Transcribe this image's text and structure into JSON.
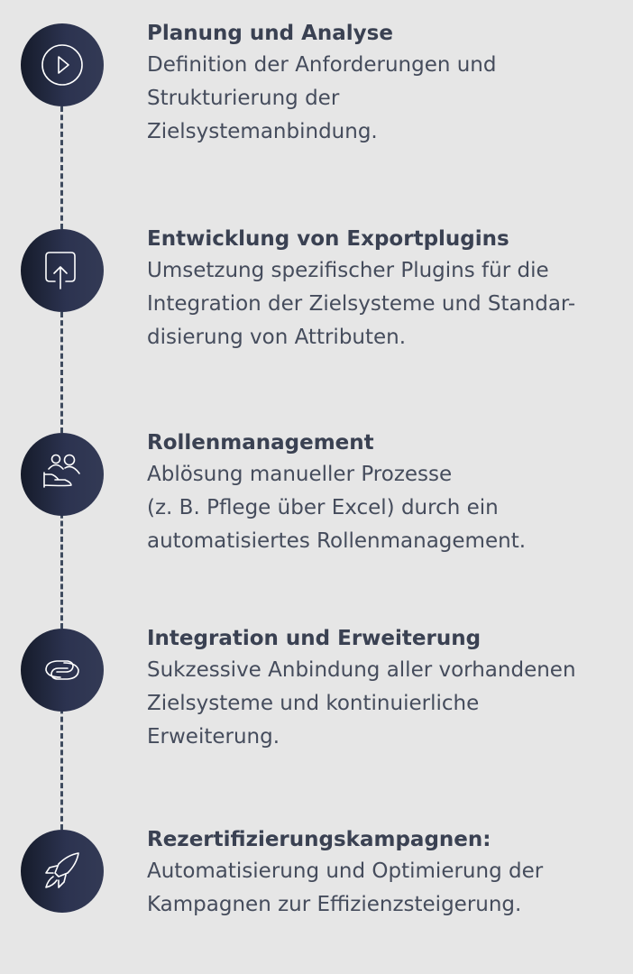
{
  "steps": [
    {
      "icon": "play-circle-icon",
      "title": "Planung und Analyse",
      "lines": [
        "Definition der Anforderungen und",
        "Strukturierung der",
        "Zielsystemanbindung."
      ]
    },
    {
      "icon": "upload-icon",
      "title": "Entwicklung von Exportplugins",
      "lines": [
        "Umsetzung spezifischer Plugins für die",
        "Integration der Zielsysteme und Standar-",
        "disierung von Attributen."
      ]
    },
    {
      "icon": "users-hand-icon",
      "title": "Rollenmanagement",
      "lines": [
        "Ablösung manueller Prozesse",
        "(z. B. Pflege über Excel) durch ein",
        "automatisiertes Rollenmanagement."
      ]
    },
    {
      "icon": "link-icon",
      "title": "Integration und Erweiterung",
      "lines": [
        "Sukzessive Anbindung aller vorhandenen",
        "Zielsysteme und kontinuierliche",
        "Erweiterung."
      ]
    },
    {
      "icon": "rocket-icon",
      "title": "Rezertifizierungskampagnen:",
      "lines": [
        "Automatisierung und Optimierung der",
        "Kampagnen zur Effizienzsteigerung."
      ]
    }
  ],
  "colors": {
    "background": "#e6e6e6",
    "circle": "#2c3350",
    "line": "#3e4a5e",
    "text": "#3d4454"
  }
}
